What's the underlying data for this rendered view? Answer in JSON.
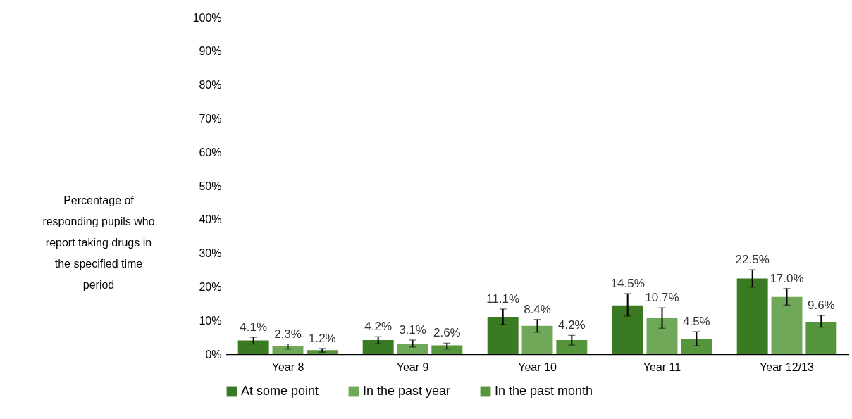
{
  "chart_data": {
    "type": "bar",
    "ylabel": "Percentage of responding pupils who report taking drugs in the specified time period",
    "categories": [
      "Year 8",
      "Year 9",
      "Year 10",
      "Year 11",
      "Year 12/13"
    ],
    "series": [
      {
        "name": "At some point",
        "color": "#3a7a22",
        "values": [
          4.1,
          4.2,
          11.1,
          14.5,
          22.5
        ],
        "value_labels": [
          "4.1%",
          "4.2%",
          "11.1%",
          "14.5%",
          "22.5%"
        ],
        "errors": [
          [
            3.0,
            5.0
          ],
          [
            3.1,
            5.2
          ],
          [
            8.8,
            13.4
          ],
          [
            11.3,
            18.0
          ],
          [
            19.9,
            25.1
          ]
        ]
      },
      {
        "name": "In the past year",
        "color": "#6fa858",
        "values": [
          2.3,
          3.1,
          8.4,
          10.7,
          17.0
        ],
        "value_labels": [
          "2.3%",
          "3.1%",
          "8.4%",
          "10.7%",
          "17.0%"
        ],
        "errors": [
          [
            1.5,
            3.0
          ],
          [
            2.1,
            4.2
          ],
          [
            6.5,
            10.3
          ],
          [
            7.7,
            13.8
          ],
          [
            14.6,
            19.5
          ]
        ]
      },
      {
        "name": "In the past month",
        "color": "#55953c",
        "values": [
          1.2,
          2.6,
          4.2,
          4.5,
          9.6
        ],
        "value_labels": [
          "1.2%",
          "2.6%",
          "4.2%",
          "4.5%",
          "9.6%"
        ],
        "errors": [
          [
            0.6,
            1.7
          ],
          [
            1.5,
            3.3
          ],
          [
            2.7,
            5.6
          ],
          [
            2.5,
            6.7
          ],
          [
            8.0,
            11.5
          ]
        ]
      }
    ],
    "ylim": [
      0,
      100
    ],
    "yticks": [
      {
        "value": 0,
        "label": "0%"
      },
      {
        "value": 10,
        "label": "10%"
      },
      {
        "value": 20,
        "label": "20%"
      },
      {
        "value": 30,
        "label": "30%"
      },
      {
        "value": 40,
        "label": "40%"
      },
      {
        "value": 50,
        "label": "50%"
      },
      {
        "value": 60,
        "label": "60%"
      },
      {
        "value": 70,
        "label": "70%"
      },
      {
        "value": 80,
        "label": "80%"
      },
      {
        "value": 90,
        "label": "90%"
      },
      {
        "value": 100,
        "label": "100%"
      }
    ],
    "grid": false,
    "legend": "bottom",
    "data_labels": false
  }
}
